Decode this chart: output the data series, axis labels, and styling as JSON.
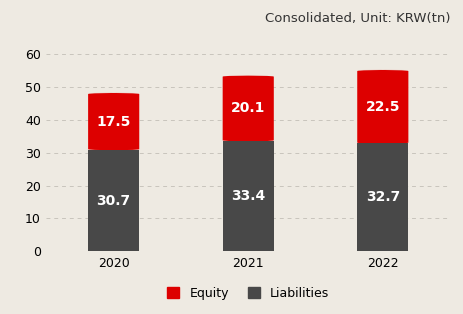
{
  "years": [
    "2020",
    "2021",
    "2022"
  ],
  "liabilities": [
    30.7,
    33.4,
    32.7
  ],
  "equity": [
    17.5,
    20.1,
    22.5
  ],
  "liabilities_color": "#484848",
  "equity_color": "#dd0000",
  "background_color": "#eeeae2",
  "text_color_white": "#ffffff",
  "title": "Consolidated, Unit: KRW(tn)",
  "title_fontsize": 9.5,
  "ylabel_ticks": [
    0,
    10,
    20,
    30,
    40,
    50,
    60
  ],
  "ylim": [
    0,
    65
  ],
  "bar_width": 0.38,
  "legend_equity": "Equity",
  "legend_liabilities": "Liabilities",
  "value_fontsize": 10,
  "tick_fontsize": 9
}
